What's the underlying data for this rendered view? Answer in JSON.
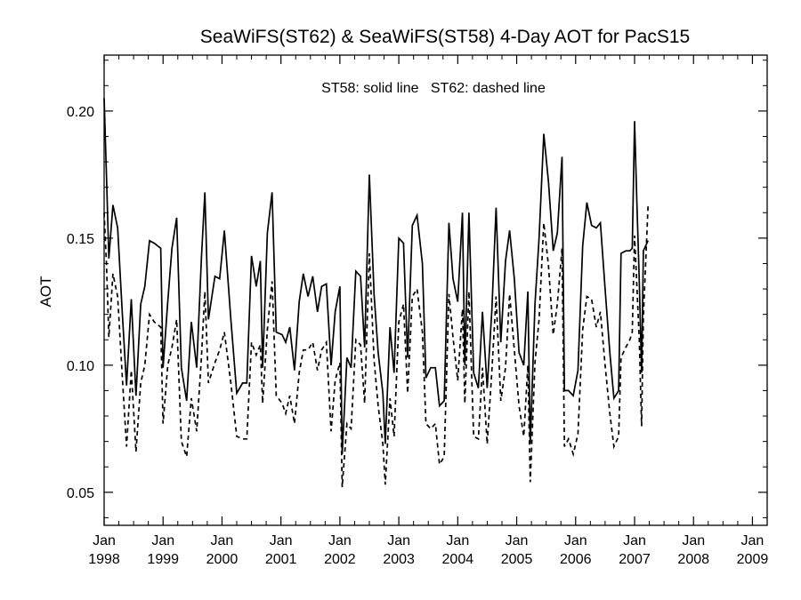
{
  "chart_data": {
    "type": "line",
    "title": "SeaWiFS(ST62) & SeaWiFS(ST58) 4-Day AOT for PacS15",
    "annotation": "ST58: solid line   ST62: dashed line",
    "ylabel": "AOT",
    "xlabel": "",
    "xlim": [
      1998.0,
      2009.25
    ],
    "ylim": [
      0.037,
      0.222
    ],
    "grid": false,
    "y_ticks": [
      {
        "value": 0.05,
        "label": "0.05"
      },
      {
        "value": 0.1,
        "label": "0.10"
      },
      {
        "value": 0.15,
        "label": "0.15"
      },
      {
        "value": 0.2,
        "label": "0.20"
      }
    ],
    "x_ticks": [
      {
        "value": 1998,
        "month": "Jan",
        "year": "1998"
      },
      {
        "value": 1999,
        "month": "Jan",
        "year": "1999"
      },
      {
        "value": 2000,
        "month": "Jan",
        "year": "2000"
      },
      {
        "value": 2001,
        "month": "Jan",
        "year": "2001"
      },
      {
        "value": 2002,
        "month": "Jan",
        "year": "2002"
      },
      {
        "value": 2003,
        "month": "Jan",
        "year": "2003"
      },
      {
        "value": 2004,
        "month": "Jan",
        "year": "2004"
      },
      {
        "value": 2005,
        "month": "Jan",
        "year": "2005"
      },
      {
        "value": 2006,
        "month": "Jan",
        "year": "2006"
      },
      {
        "value": 2007,
        "month": "Jan",
        "year": "2007"
      },
      {
        "value": 2008,
        "month": "Jan",
        "year": "2008"
      },
      {
        "value": 2009,
        "month": "Jan",
        "year": "2009"
      }
    ],
    "series": [
      {
        "name": "ST58",
        "style": "solid",
        "color": "#000000",
        "points": [
          [
            1998.0,
            0.205
          ],
          [
            1998.04,
            0.175
          ],
          [
            1998.08,
            0.142
          ],
          [
            1998.15,
            0.163
          ],
          [
            1998.23,
            0.154
          ],
          [
            1998.31,
            0.12
          ],
          [
            1998.38,
            0.092
          ],
          [
            1998.46,
            0.126
          ],
          [
            1998.54,
            0.088
          ],
          [
            1998.62,
            0.124
          ],
          [
            1998.69,
            0.131
          ],
          [
            1998.77,
            0.149
          ],
          [
            1998.85,
            0.148
          ],
          [
            1998.96,
            0.146
          ],
          [
            1999.0,
            0.099
          ],
          [
            1999.08,
            0.125
          ],
          [
            1999.15,
            0.146
          ],
          [
            1999.23,
            0.158
          ],
          [
            1999.31,
            0.099
          ],
          [
            1999.4,
            0.086
          ],
          [
            1999.48,
            0.117
          ],
          [
            1999.57,
            0.099
          ],
          [
            1999.65,
            0.142
          ],
          [
            1999.71,
            0.168
          ],
          [
            1999.77,
            0.118
          ],
          [
            1999.88,
            0.135
          ],
          [
            1999.96,
            0.134
          ],
          [
            2000.04,
            0.153
          ],
          [
            2000.15,
            0.118
          ],
          [
            2000.25,
            0.089
          ],
          [
            2000.35,
            0.093
          ],
          [
            2000.42,
            0.093
          ],
          [
            2000.5,
            0.143
          ],
          [
            2000.58,
            0.131
          ],
          [
            2000.65,
            0.141
          ],
          [
            2000.69,
            0.099
          ],
          [
            2000.77,
            0.152
          ],
          [
            2000.85,
            0.168
          ],
          [
            2000.92,
            0.113
          ],
          [
            2001.02,
            0.112
          ],
          [
            2001.08,
            0.109
          ],
          [
            2001.15,
            0.115
          ],
          [
            2001.23,
            0.098
          ],
          [
            2001.31,
            0.125
          ],
          [
            2001.38,
            0.136
          ],
          [
            2001.46,
            0.127
          ],
          [
            2001.54,
            0.135
          ],
          [
            2001.62,
            0.121
          ],
          [
            2001.69,
            0.131
          ],
          [
            2001.77,
            0.132
          ],
          [
            2001.85,
            0.1
          ],
          [
            2001.92,
            0.121
          ],
          [
            2002.0,
            0.131
          ],
          [
            2002.04,
            0.065
          ],
          [
            2002.12,
            0.103
          ],
          [
            2002.19,
            0.099
          ],
          [
            2002.27,
            0.137
          ],
          [
            2002.35,
            0.135
          ],
          [
            2002.42,
            0.107
          ],
          [
            2002.5,
            0.175
          ],
          [
            2002.58,
            0.128
          ],
          [
            2002.65,
            0.105
          ],
          [
            2002.73,
            0.089
          ],
          [
            2002.77,
            0.069
          ],
          [
            2002.85,
            0.115
          ],
          [
            2002.92,
            0.097
          ],
          [
            2003.0,
            0.15
          ],
          [
            2003.08,
            0.148
          ],
          [
            2003.15,
            0.103
          ],
          [
            2003.23,
            0.155
          ],
          [
            2003.31,
            0.159
          ],
          [
            2003.4,
            0.14
          ],
          [
            2003.46,
            0.095
          ],
          [
            2003.54,
            0.099
          ],
          [
            2003.62,
            0.099
          ],
          [
            2003.69,
            0.084
          ],
          [
            2003.77,
            0.086
          ],
          [
            2003.85,
            0.156
          ],
          [
            2003.92,
            0.134
          ],
          [
            2004.0,
            0.125
          ],
          [
            2004.08,
            0.16
          ],
          [
            2004.12,
            0.1
          ],
          [
            2004.19,
            0.16
          ],
          [
            2004.27,
            0.097
          ],
          [
            2004.35,
            0.091
          ],
          [
            2004.42,
            0.121
          ],
          [
            2004.5,
            0.091
          ],
          [
            2004.58,
            0.122
          ],
          [
            2004.65,
            0.162
          ],
          [
            2004.73,
            0.109
          ],
          [
            2004.81,
            0.141
          ],
          [
            2004.88,
            0.153
          ],
          [
            2004.96,
            0.134
          ],
          [
            2005.04,
            0.105
          ],
          [
            2005.12,
            0.1
          ],
          [
            2005.19,
            0.129
          ],
          [
            2005.23,
            0.069
          ],
          [
            2005.31,
            0.124
          ],
          [
            2005.38,
            0.15
          ],
          [
            2005.46,
            0.191
          ],
          [
            2005.54,
            0.172
          ],
          [
            2005.62,
            0.145
          ],
          [
            2005.69,
            0.152
          ],
          [
            2005.77,
            0.182
          ],
          [
            2005.81,
            0.09
          ],
          [
            2005.88,
            0.09
          ],
          [
            2005.96,
            0.088
          ],
          [
            2006.04,
            0.098
          ],
          [
            2006.12,
            0.147
          ],
          [
            2006.19,
            0.164
          ],
          [
            2006.27,
            0.155
          ],
          [
            2006.35,
            0.154
          ],
          [
            2006.42,
            0.156
          ],
          [
            2006.5,
            0.13
          ],
          [
            2006.58,
            0.105
          ],
          [
            2006.65,
            0.087
          ],
          [
            2006.73,
            0.09
          ],
          [
            2006.77,
            0.144
          ],
          [
            2006.85,
            0.145
          ],
          [
            2006.92,
            0.145
          ],
          [
            2006.96,
            0.146
          ],
          [
            2007.0,
            0.196
          ],
          [
            2007.04,
            0.164
          ],
          [
            2007.08,
            0.133
          ],
          [
            2007.12,
            0.097
          ],
          [
            2007.15,
            0.145
          ],
          [
            2007.23,
            0.149
          ]
        ]
      },
      {
        "name": "ST62",
        "style": "dashed",
        "color": "#000000",
        "points": [
          [
            1998.0,
            0.16
          ],
          [
            1998.04,
            0.14
          ],
          [
            1998.08,
            0.111
          ],
          [
            1998.15,
            0.136
          ],
          [
            1998.23,
            0.127
          ],
          [
            1998.31,
            0.095
          ],
          [
            1998.38,
            0.068
          ],
          [
            1998.46,
            0.098
          ],
          [
            1998.54,
            0.066
          ],
          [
            1998.62,
            0.093
          ],
          [
            1998.69,
            0.1
          ],
          [
            1998.77,
            0.12
          ],
          [
            1998.85,
            0.117
          ],
          [
            1998.96,
            0.115
          ],
          [
            1999.0,
            0.077
          ],
          [
            1999.08,
            0.1
          ],
          [
            1999.15,
            0.107
          ],
          [
            1999.23,
            0.118
          ],
          [
            1999.31,
            0.07
          ],
          [
            1999.4,
            0.064
          ],
          [
            1999.48,
            0.087
          ],
          [
            1999.57,
            0.074
          ],
          [
            1999.65,
            0.103
          ],
          [
            1999.71,
            0.129
          ],
          [
            1999.77,
            0.093
          ],
          [
            1999.88,
            0.101
          ],
          [
            1999.96,
            0.106
          ],
          [
            2000.04,
            0.113
          ],
          [
            2000.15,
            0.093
          ],
          [
            2000.25,
            0.072
          ],
          [
            2000.35,
            0.071
          ],
          [
            2000.42,
            0.071
          ],
          [
            2000.5,
            0.109
          ],
          [
            2000.58,
            0.104
          ],
          [
            2000.65,
            0.108
          ],
          [
            2000.69,
            0.085
          ],
          [
            2000.77,
            0.114
          ],
          [
            2000.85,
            0.133
          ],
          [
            2000.92,
            0.088
          ],
          [
            2001.02,
            0.085
          ],
          [
            2001.08,
            0.081
          ],
          [
            2001.15,
            0.088
          ],
          [
            2001.23,
            0.077
          ],
          [
            2001.31,
            0.097
          ],
          [
            2001.38,
            0.106
          ],
          [
            2001.46,
            0.106
          ],
          [
            2001.54,
            0.109
          ],
          [
            2001.62,
            0.098
          ],
          [
            2001.69,
            0.106
          ],
          [
            2001.77,
            0.109
          ],
          [
            2001.85,
            0.074
          ],
          [
            2001.92,
            0.094
          ],
          [
            2002.0,
            0.101
          ],
          [
            2002.04,
            0.052
          ],
          [
            2002.12,
            0.077
          ],
          [
            2002.19,
            0.075
          ],
          [
            2002.27,
            0.11
          ],
          [
            2002.35,
            0.108
          ],
          [
            2002.42,
            0.085
          ],
          [
            2002.5,
            0.144
          ],
          [
            2002.58,
            0.102
          ],
          [
            2002.65,
            0.084
          ],
          [
            2002.73,
            0.069
          ],
          [
            2002.77,
            0.053
          ],
          [
            2002.85,
            0.087
          ],
          [
            2002.92,
            0.072
          ],
          [
            2003.0,
            0.117
          ],
          [
            2003.08,
            0.124
          ],
          [
            2003.15,
            0.089
          ],
          [
            2003.23,
            0.127
          ],
          [
            2003.31,
            0.13
          ],
          [
            2003.4,
            0.113
          ],
          [
            2003.46,
            0.077
          ],
          [
            2003.54,
            0.075
          ],
          [
            2003.62,
            0.077
          ],
          [
            2003.69,
            0.061
          ],
          [
            2003.77,
            0.064
          ],
          [
            2003.85,
            0.128
          ],
          [
            2003.92,
            0.111
          ],
          [
            2004.0,
            0.094
          ],
          [
            2004.08,
            0.122
          ],
          [
            2004.12,
            0.085
          ],
          [
            2004.19,
            0.129
          ],
          [
            2004.27,
            0.072
          ],
          [
            2004.35,
            0.071
          ],
          [
            2004.42,
            0.099
          ],
          [
            2004.5,
            0.069
          ],
          [
            2004.58,
            0.098
          ],
          [
            2004.65,
            0.127
          ],
          [
            2004.73,
            0.086
          ],
          [
            2004.81,
            0.099
          ],
          [
            2004.88,
            0.128
          ],
          [
            2004.96,
            0.106
          ],
          [
            2005.04,
            0.084
          ],
          [
            2005.12,
            0.072
          ],
          [
            2005.19,
            0.1
          ],
          [
            2005.23,
            0.054
          ],
          [
            2005.31,
            0.101
          ],
          [
            2005.38,
            0.118
          ],
          [
            2005.46,
            0.156
          ],
          [
            2005.54,
            0.139
          ],
          [
            2005.62,
            0.112
          ],
          [
            2005.69,
            0.124
          ],
          [
            2005.77,
            0.146
          ],
          [
            2005.81,
            0.068
          ],
          [
            2005.88,
            0.071
          ],
          [
            2005.96,
            0.065
          ],
          [
            2006.04,
            0.073
          ],
          [
            2006.12,
            0.114
          ],
          [
            2006.19,
            0.127
          ],
          [
            2006.27,
            0.126
          ],
          [
            2006.35,
            0.115
          ],
          [
            2006.42,
            0.121
          ],
          [
            2006.5,
            0.1
          ],
          [
            2006.58,
            0.081
          ],
          [
            2006.65,
            0.068
          ],
          [
            2006.73,
            0.072
          ],
          [
            2006.77,
            0.103
          ],
          [
            2006.85,
            0.107
          ],
          [
            2006.92,
            0.11
          ],
          [
            2006.96,
            0.113
          ],
          [
            2007.0,
            0.151
          ],
          [
            2007.04,
            0.131
          ],
          [
            2007.08,
            0.11
          ],
          [
            2007.12,
            0.076
          ],
          [
            2007.15,
            0.119
          ],
          [
            2007.23,
            0.163
          ]
        ]
      }
    ]
  }
}
